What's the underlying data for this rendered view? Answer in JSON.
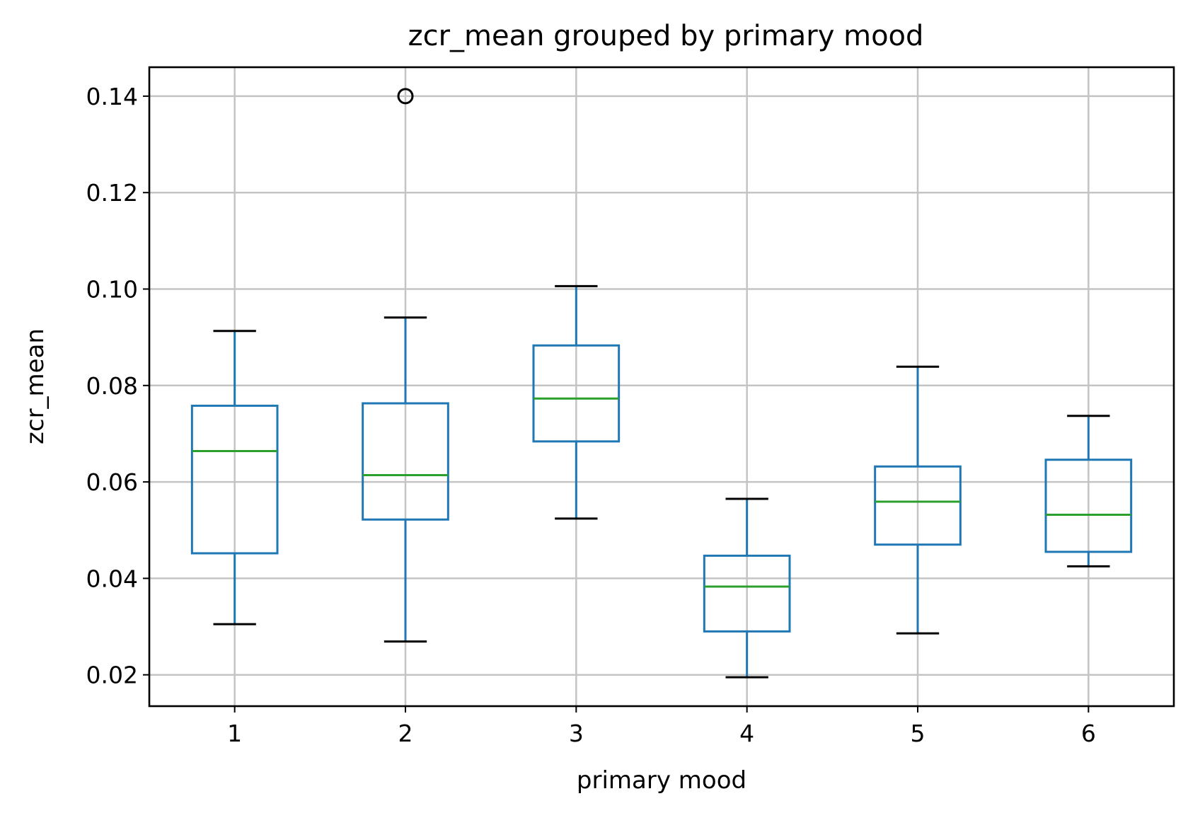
{
  "chart_data": {
    "type": "box",
    "title": "zcr_mean grouped by primary mood",
    "xlabel": "primary mood",
    "ylabel": "zcr_mean",
    "ylim": [
      0.0135,
      0.146
    ],
    "yticks": [
      0.02,
      0.04,
      0.06,
      0.08,
      0.1,
      0.12,
      0.14
    ],
    "ytick_labels": [
      "0.02",
      "0.04",
      "0.06",
      "0.08",
      "0.10",
      "0.12",
      "0.14"
    ],
    "categories": [
      "1",
      "2",
      "3",
      "4",
      "5",
      "6"
    ],
    "grid": true,
    "colors": {
      "box": "#1f77b4",
      "median": "#2ca02c",
      "cap": "#000000",
      "grid": "#c4c4c4",
      "outlier": "#000000"
    },
    "boxes": [
      {
        "category": "1",
        "whisker_low": 0.0305,
        "q1": 0.0452,
        "median": 0.0664,
        "q3": 0.0758,
        "whisker_high": 0.0913,
        "outliers": []
      },
      {
        "category": "2",
        "whisker_low": 0.0269,
        "q1": 0.0522,
        "median": 0.0614,
        "q3": 0.0763,
        "whisker_high": 0.0941,
        "outliers": [
          0.14
        ]
      },
      {
        "category": "3",
        "whisker_low": 0.0524,
        "q1": 0.0684,
        "median": 0.0773,
        "q3": 0.0883,
        "whisker_high": 0.1006,
        "outliers": []
      },
      {
        "category": "4",
        "whisker_low": 0.0195,
        "q1": 0.029,
        "median": 0.0383,
        "q3": 0.0447,
        "whisker_high": 0.0565,
        "outliers": []
      },
      {
        "category": "5",
        "whisker_low": 0.0286,
        "q1": 0.047,
        "median": 0.0559,
        "q3": 0.0632,
        "whisker_high": 0.0839,
        "outliers": []
      },
      {
        "category": "6",
        "whisker_low": 0.0425,
        "q1": 0.0455,
        "median": 0.0532,
        "q3": 0.0646,
        "whisker_high": 0.0737,
        "outliers": []
      }
    ]
  }
}
